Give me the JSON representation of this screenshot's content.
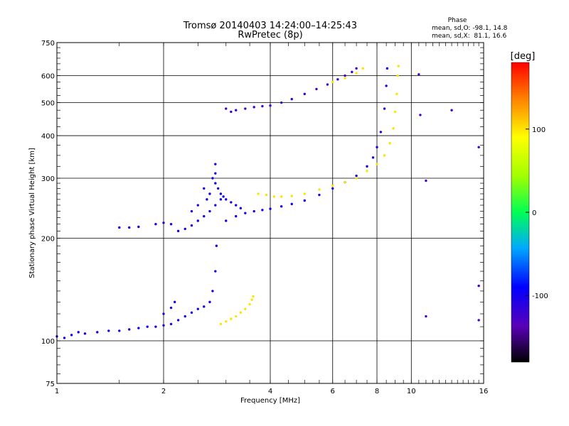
{
  "chart_data": {
    "type": "scatter",
    "title": "Tromsø 20140403 14:24:00–14:25:43",
    "subtitle": "RwPretec (8p)",
    "xlabel": "Frequency [MHz]",
    "ylabel": "Stationary phase Virtual Height [km]",
    "x_scale": "log",
    "y_scale": "log",
    "xlim": [
      1,
      16
    ],
    "ylim": [
      75,
      750
    ],
    "grid": true,
    "x_ticks": [
      1,
      2,
      4,
      6,
      8,
      10,
      16
    ],
    "x_tick_labels": [
      "1",
      "2",
      "4",
      "6",
      "8",
      "10",
      "16"
    ],
    "y_ticks": [
      75,
      100,
      200,
      300,
      400,
      500,
      600,
      750
    ],
    "y_tick_labels": [
      "75",
      "100",
      "200",
      "300",
      "400",
      "500",
      "600",
      "750"
    ],
    "phase_panel": {
      "heading": "Phase",
      "line_o": "mean, sd,O: -98.1, 14.8",
      "line_x": "mean, sd,X:  81.1, 16.6"
    },
    "colorbar": {
      "label": "[deg]",
      "range": [
        -180,
        180
      ],
      "ticks": [
        100,
        0,
        -100
      ],
      "tick_labels": [
        "100",
        "0",
        "-100"
      ]
    },
    "series": [
      {
        "phase": -100,
        "points": [
          [
            1.0,
            103
          ],
          [
            1.05,
            102
          ],
          [
            1.1,
            104
          ],
          [
            1.15,
            106
          ],
          [
            1.2,
            105
          ],
          [
            1.3,
            106
          ],
          [
            1.4,
            107
          ],
          [
            1.5,
            107
          ],
          [
            1.6,
            108
          ],
          [
            1.7,
            109
          ],
          [
            1.8,
            110
          ],
          [
            1.9,
            110
          ],
          [
            2.0,
            111
          ],
          [
            2.1,
            112
          ],
          [
            2.2,
            115
          ],
          [
            2.3,
            118
          ],
          [
            2.4,
            121
          ],
          [
            2.5,
            124
          ],
          [
            2.6,
            126
          ],
          [
            2.7,
            130
          ],
          [
            2.75,
            140
          ],
          [
            2.8,
            160
          ],
          [
            2.82,
            190
          ],
          [
            2.1,
            125
          ],
          [
            2.15,
            130
          ],
          [
            2.0,
            120
          ]
        ]
      },
      {
        "phase": 100,
        "points": [
          [
            2.9,
            112
          ],
          [
            3.0,
            114
          ],
          [
            3.1,
            116
          ],
          [
            3.2,
            118
          ],
          [
            3.3,
            121
          ],
          [
            3.4,
            124
          ],
          [
            3.5,
            128
          ],
          [
            3.55,
            132
          ],
          [
            3.58,
            135
          ]
        ]
      },
      {
        "phase": -100,
        "points": [
          [
            1.5,
            215
          ],
          [
            1.6,
            215
          ],
          [
            1.7,
            216
          ],
          [
            1.9,
            220
          ],
          [
            2.0,
            222
          ],
          [
            2.1,
            220
          ],
          [
            2.2,
            210
          ],
          [
            2.3,
            213
          ],
          [
            2.4,
            218
          ],
          [
            2.5,
            225
          ],
          [
            2.6,
            232
          ],
          [
            2.7,
            240
          ],
          [
            2.8,
            250
          ],
          [
            2.9,
            260
          ],
          [
            3.0,
            225
          ],
          [
            3.2,
            232
          ],
          [
            3.4,
            237
          ],
          [
            3.6,
            240
          ],
          [
            3.8,
            242
          ],
          [
            4.0,
            244
          ],
          [
            4.3,
            248
          ],
          [
            4.6,
            252
          ],
          [
            5.0,
            258
          ],
          [
            5.5,
            268
          ],
          [
            6.0,
            280
          ],
          [
            6.5,
            292
          ],
          [
            7.0,
            305
          ],
          [
            7.5,
            325
          ],
          [
            7.8,
            345
          ],
          [
            8.0,
            370
          ],
          [
            8.2,
            410
          ],
          [
            8.4,
            480
          ],
          [
            8.5,
            560
          ],
          [
            8.55,
            630
          ]
        ]
      },
      {
        "phase": -100,
        "points": [
          [
            2.8,
            330
          ],
          [
            2.8,
            310
          ],
          [
            2.8,
            290
          ],
          [
            2.85,
            280
          ],
          [
            2.9,
            270
          ],
          [
            2.95,
            265
          ],
          [
            3.0,
            260
          ],
          [
            3.1,
            255
          ],
          [
            3.2,
            250
          ],
          [
            3.3,
            245
          ],
          [
            2.7,
            270
          ],
          [
            2.75,
            300
          ],
          [
            2.6,
            280
          ],
          [
            2.65,
            260
          ],
          [
            2.5,
            250
          ],
          [
            2.4,
            240
          ]
        ]
      },
      {
        "phase": -120,
        "points": [
          [
            3.0,
            480
          ],
          [
            3.1,
            470
          ],
          [
            3.2,
            475
          ],
          [
            3.4,
            480
          ],
          [
            3.6,
            485
          ],
          [
            3.8,
            488
          ],
          [
            4.0,
            490
          ],
          [
            4.3,
            500
          ],
          [
            4.6,
            512
          ],
          [
            5.0,
            530
          ],
          [
            5.4,
            548
          ],
          [
            5.8,
            565
          ],
          [
            6.2,
            585
          ],
          [
            6.5,
            600
          ],
          [
            6.8,
            615
          ],
          [
            7.0,
            630
          ]
        ]
      },
      {
        "phase": 100,
        "points": [
          [
            3.7,
            270
          ],
          [
            3.9,
            268
          ],
          [
            4.1,
            265
          ],
          [
            4.3,
            265
          ],
          [
            4.6,
            266
          ],
          [
            5.0,
            270
          ],
          [
            5.5,
            278
          ],
          [
            6.0,
            285
          ],
          [
            6.5,
            292
          ],
          [
            7.0,
            300
          ],
          [
            7.5,
            315
          ],
          [
            8.0,
            330
          ],
          [
            8.4,
            350
          ],
          [
            8.7,
            380
          ],
          [
            8.9,
            420
          ],
          [
            9.0,
            470
          ],
          [
            9.1,
            530
          ],
          [
            9.15,
            600
          ],
          [
            9.2,
            640
          ]
        ]
      },
      {
        "phase": 100,
        "points": [
          [
            6.0,
            575
          ],
          [
            6.5,
            590
          ],
          [
            7.0,
            610
          ],
          [
            7.3,
            630
          ]
        ]
      },
      {
        "phase": -120,
        "points": [
          [
            10.5,
            605
          ],
          [
            11.0,
            295
          ],
          [
            11.0,
            118
          ],
          [
            10.6,
            460
          ],
          [
            13.0,
            475
          ],
          [
            15.5,
            370
          ],
          [
            15.5,
            145
          ],
          [
            15.5,
            115
          ]
        ]
      }
    ]
  }
}
